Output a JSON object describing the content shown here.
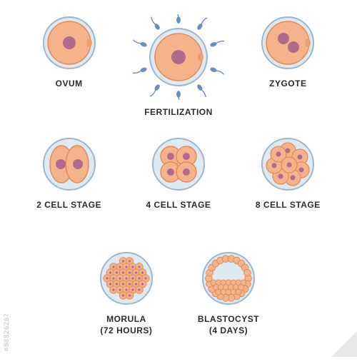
{
  "colors": {
    "membrane_stroke": "#9fb6c9",
    "membrane_fill": "#dfe9f0",
    "cytoplasm": "#f5b38a",
    "cytoplasm_stroke": "#e08b5c",
    "nucleus": "#b06a8a",
    "sperm": "#6b8bc4",
    "label": "#2b2b2b",
    "polar_body": "#e6a076"
  },
  "label_fontsize": 12,
  "stages": {
    "ovum": {
      "label": "OVUM"
    },
    "fertilization": {
      "label": "FERTILIZATION"
    },
    "zygote": {
      "label": "ZYGOTE"
    },
    "two_cell": {
      "label": "2 CELL STAGE"
    },
    "four_cell": {
      "label": "4 CELL STAGE"
    },
    "eight_cell": {
      "label": "8 CELL STAGE"
    },
    "morula": {
      "label": "MORULA",
      "sub": "(72 HOURS)"
    },
    "blastocyst": {
      "label": "BLASTOCYST",
      "sub": "(4 DAYS)"
    }
  },
  "watermark": "#88826267"
}
